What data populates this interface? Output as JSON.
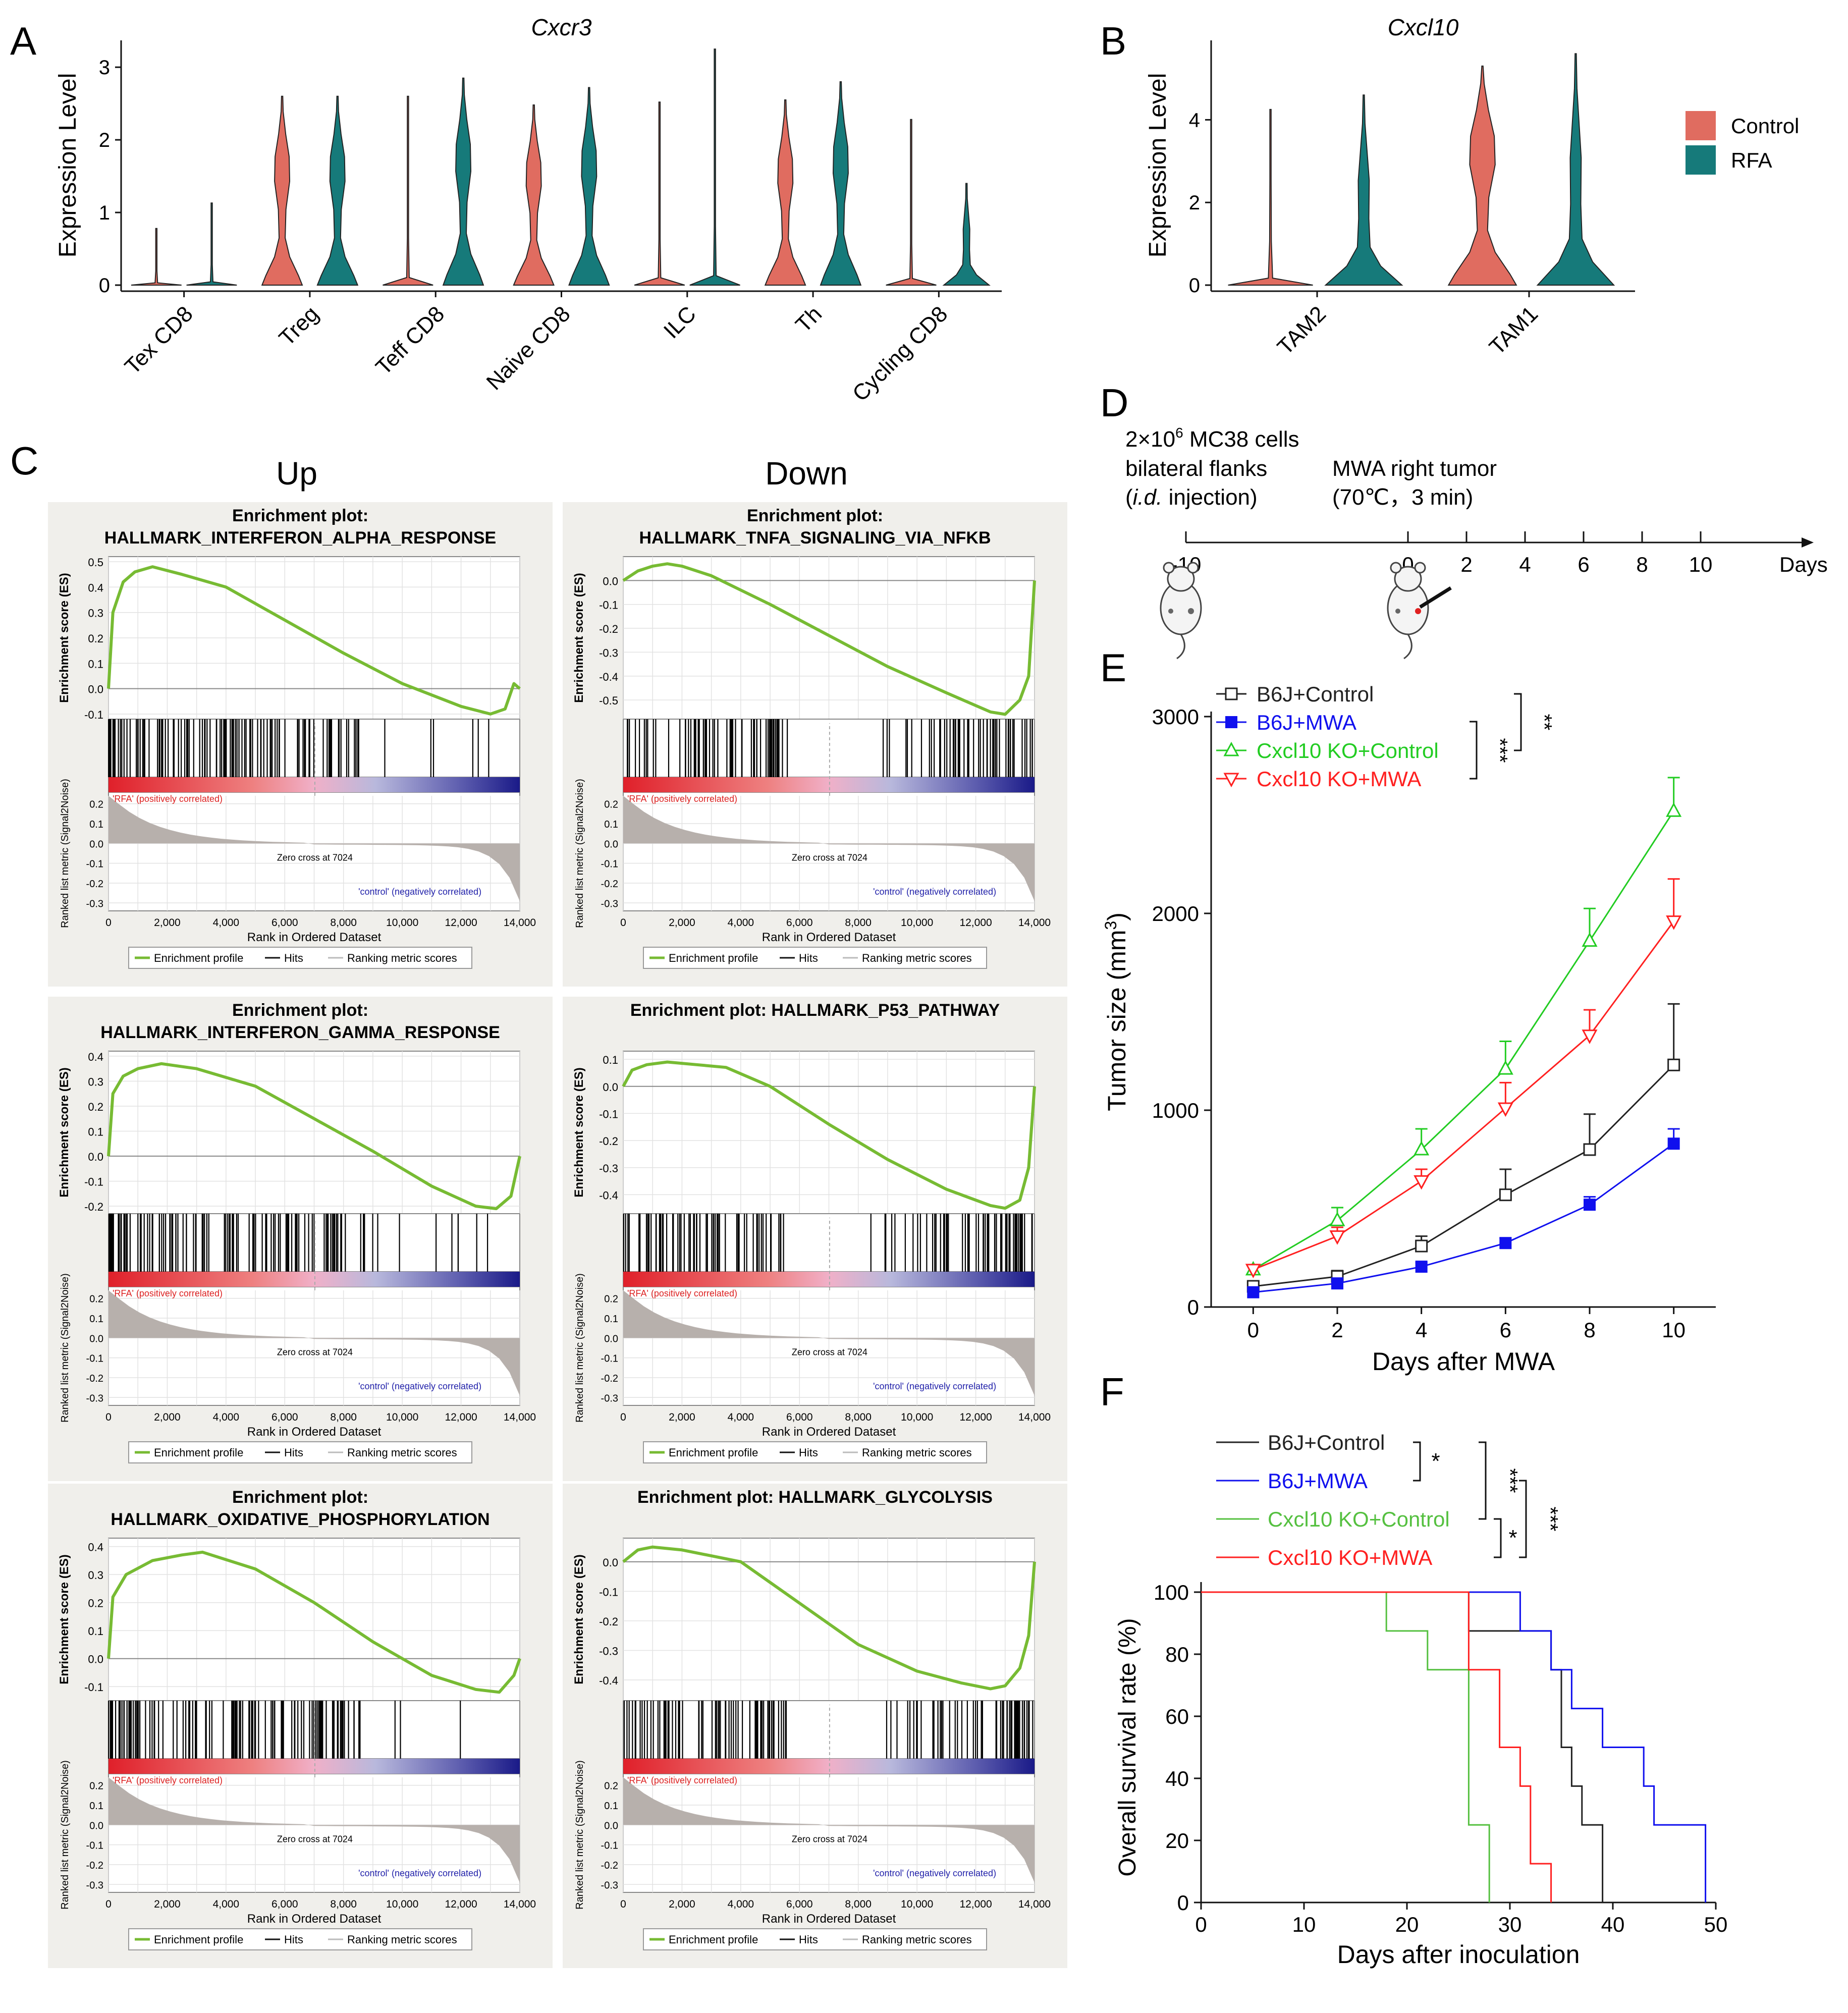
{
  "colors": {
    "control": "#e06c60",
    "rfa": "#167a7a",
    "gsea_curve": "#77bb33",
    "gsea_panel": "#f0efeb",
    "green": "#22cc22",
    "red": "#ff2020",
    "blue": "#1010ee",
    "black": "#222222",
    "survival_green": "#55c040"
  },
  "panel_letters": {
    "a": "A",
    "b": "B",
    "c": "C",
    "d": "D",
    "e": "E",
    "f": "F"
  },
  "chart_data": [
    {
      "id": "A",
      "type": "violin",
      "title": "Cxcr3",
      "ylabel": "Expression Level",
      "ylim": [
        0,
        3.3
      ],
      "yticks": [
        "0",
        "1",
        "2",
        "3"
      ],
      "categories": [
        "Tex CD8",
        "Treg",
        "Teff CD8",
        "Naive CD8",
        "ILC",
        "Th",
        "Cycling CD8"
      ],
      "max": {
        "Control": [
          0.78,
          2.6,
          2.6,
          2.48,
          2.52,
          2.55,
          2.28
        ],
        "RFA": [
          1.13,
          2.6,
          2.85,
          2.72,
          3.25,
          2.8,
          1.4
        ]
      },
      "shape_index": {
        "Control": [
          0,
          2,
          0,
          2,
          0,
          2,
          0
        ],
        "RFA": [
          0,
          2,
          2,
          2,
          0,
          2,
          1
        ]
      }
    },
    {
      "id": "B",
      "type": "violin",
      "title": "Cxcl10",
      "ylabel": "Expression Level",
      "ylim": [
        0,
        5.8
      ],
      "yticks": [
        "0",
        "2",
        "4"
      ],
      "categories": [
        "TAM2",
        "TAM1"
      ],
      "max": {
        "Control": [
          4.25,
          5.3
        ],
        "RFA": [
          4.6,
          5.6
        ]
      },
      "shape_index": {
        "Control": [
          0,
          2
        ],
        "RFA": [
          1,
          1
        ]
      },
      "legend": [
        "Control",
        "RFA"
      ]
    },
    {
      "id": "C",
      "type": "gsea",
      "column_titles": [
        "Up",
        "Down"
      ],
      "common": {
        "es_label": "Enrichment score (ES)",
        "rank_label": "Ranked list metric (Signal2Noise)",
        "xlabel": "Rank in Ordered Dataset",
        "xticks": [
          "0",
          "2,000",
          "4,000",
          "6,000",
          "8,000",
          "10,000",
          "12,000",
          "14,000"
        ],
        "rank_ticks": [
          "0.2",
          "0.1",
          "0.0",
          "-0.1",
          "-0.2",
          "-0.3"
        ],
        "pos_label": "'RFA' (positively correlated)",
        "neg_label": "'control' (negatively correlated)",
        "zero_cross": "Zero cross at 7024",
        "legend": [
          "Enrichment profile",
          "Hits",
          "Ranking metric scores"
        ]
      },
      "plots": [
        {
          "title1": "Enrichment plot:",
          "title2": "HALLMARK_INTERFERON_ALPHA_RESPONSE",
          "yticks": [
            0.5,
            0.4,
            0.3,
            0.2,
            0.1,
            0.0,
            -0.1
          ],
          "ylim": [
            -0.12,
            0.52
          ],
          "curve": {
            "x": [
              0,
              150,
              500,
              900,
              1500,
              2500,
              4000,
              6000,
              8000,
              10000,
              12000,
              13000,
              13500,
              13800,
              14000
            ],
            "y": [
              0,
              0.3,
              0.42,
              0.46,
              0.48,
              0.45,
              0.4,
              0.27,
              0.14,
              0.02,
              -0.07,
              -0.1,
              -0.08,
              0.02,
              0.0
            ]
          }
        },
        {
          "title1": "Enrichment plot:",
          "title2": "HALLMARK_TNFA_SIGNALING_VIA_NFKB",
          "yticks": [
            0.0,
            -0.1,
            -0.2,
            -0.3,
            -0.4,
            -0.5
          ],
          "ylim": [
            -0.58,
            0.1
          ],
          "curve": {
            "x": [
              0,
              500,
              1000,
              1500,
              2000,
              3000,
              5000,
              7000,
              9000,
              11000,
              12500,
              13000,
              13500,
              13800,
              14000
            ],
            "y": [
              0,
              0.04,
              0.06,
              0.07,
              0.06,
              0.02,
              -0.1,
              -0.23,
              -0.36,
              -0.47,
              -0.55,
              -0.56,
              -0.5,
              -0.4,
              0.0
            ]
          }
        },
        {
          "title1": "Enrichment plot:",
          "title2": "HALLMARK_INTERFERON_GAMMA_RESPONSE",
          "yticks": [
            0.4,
            0.3,
            0.2,
            0.1,
            0.0,
            -0.1,
            -0.2
          ],
          "ylim": [
            -0.23,
            0.42
          ],
          "curve": {
            "x": [
              0,
              150,
              500,
              1000,
              1800,
              3000,
              5000,
              7000,
              9000,
              11000,
              12500,
              13200,
              13700,
              14000
            ],
            "y": [
              0,
              0.25,
              0.32,
              0.35,
              0.37,
              0.35,
              0.28,
              0.15,
              0.02,
              -0.12,
              -0.2,
              -0.21,
              -0.16,
              0.0
            ]
          }
        },
        {
          "title1": "Enrichment plot: HALLMARK_P53_PATHWAY",
          "title2": "",
          "yticks": [
            0.1,
            0.0,
            -0.1,
            -0.2,
            -0.3,
            -0.4
          ],
          "ylim": [
            -0.47,
            0.13
          ],
          "curve": {
            "x": [
              0,
              300,
              800,
              1500,
              2500,
              3500,
              5000,
              7000,
              9000,
              11000,
              12500,
              13000,
              13500,
              13800,
              14000
            ],
            "y": [
              0,
              0.06,
              0.08,
              0.09,
              0.08,
              0.07,
              0.0,
              -0.14,
              -0.27,
              -0.38,
              -0.44,
              -0.45,
              -0.42,
              -0.3,
              0.0
            ]
          }
        },
        {
          "title1": "Enrichment plot:",
          "title2": "HALLMARK_OXIDATIVE_PHOSPHORYLATION",
          "yticks": [
            0.4,
            0.3,
            0.2,
            0.1,
            0.0,
            -0.1
          ],
          "ylim": [
            -0.15,
            0.43
          ],
          "curve": {
            "x": [
              0,
              150,
              600,
              1500,
              2500,
              3200,
              5000,
              7000,
              9000,
              11000,
              12500,
              13300,
              13800,
              14000
            ],
            "y": [
              0,
              0.22,
              0.3,
              0.35,
              0.37,
              0.38,
              0.32,
              0.2,
              0.06,
              -0.06,
              -0.11,
              -0.12,
              -0.06,
              0.0
            ]
          }
        },
        {
          "title1": "Enrichment plot: HALLMARK_GLYCOLYSIS",
          "title2": "",
          "yticks": [
            0.0,
            -0.1,
            -0.2,
            -0.3,
            -0.4
          ],
          "ylim": [
            -0.47,
            0.08
          ],
          "curve": {
            "x": [
              0,
              500,
              1000,
              2000,
              3000,
              4000,
              6000,
              8000,
              10000,
              11500,
              12500,
              13000,
              13500,
              13800,
              14000
            ],
            "y": [
              0,
              0.04,
              0.05,
              0.04,
              0.02,
              0.0,
              -0.14,
              -0.28,
              -0.37,
              -0.41,
              -0.43,
              -0.42,
              -0.36,
              -0.25,
              0.0
            ]
          }
        }
      ]
    },
    {
      "id": "D",
      "type": "timeline",
      "text_cells": "2×10",
      "text_sup": "6",
      "text_cells_rest": " MC38 cells",
      "text_flanks": "bilateral flanks",
      "text_inj_open": "(",
      "text_inj_italic": "i.d.",
      "text_inj_rest": " injection)",
      "text_mwa": "MWA right tumor",
      "text_temp": "(70℃，3 min)",
      "ticks": [
        -10,
        0,
        2,
        4,
        6,
        8,
        10
      ],
      "tick_labels": [
        "-10",
        "0",
        "2",
        "4",
        "6",
        "8",
        "10"
      ],
      "axis_label": "Days"
    },
    {
      "id": "E",
      "type": "line",
      "xlabel": "Days after MWA",
      "ylabel_main": "Tumor size (mm",
      "ylabel_sup": "3",
      "ylabel_end": ")",
      "xlim": [
        -1,
        11
      ],
      "ylim": [
        0,
        3000
      ],
      "x": [
        0,
        2,
        4,
        6,
        8,
        10
      ],
      "xticks": [
        "0",
        "2",
        "4",
        "6",
        "8",
        "10"
      ],
      "yticks": [
        "0",
        "1000",
        "2000",
        "3000"
      ],
      "series": [
        {
          "name": "B6J+Control",
          "color": "#222222",
          "marker": "square-open",
          "values": [
            105,
            155,
            310,
            570,
            800,
            1230
          ],
          "err": [
            25,
            30,
            50,
            130,
            180,
            310
          ]
        },
        {
          "name": "B6J+MWA",
          "color": "#1010ee",
          "marker": "square-filled",
          "values": [
            75,
            120,
            205,
            325,
            520,
            830
          ],
          "err": [
            15,
            15,
            20,
            25,
            40,
            75
          ]
        },
        {
          "name": "Cxcl10 KO+Control",
          "color": "#22cc22",
          "marker": "triangle-up-open",
          "values": [
            190,
            440,
            800,
            1210,
            1860,
            2520
          ],
          "err": [
            20,
            65,
            105,
            140,
            165,
            170
          ]
        },
        {
          "name": "Cxcl10 KO+MWA",
          "color": "#ff2020",
          "marker": "triangle-down-open",
          "values": [
            190,
            360,
            640,
            1010,
            1380,
            1960
          ],
          "err": [
            20,
            45,
            60,
            130,
            130,
            215
          ]
        }
      ],
      "significance": [
        "***",
        "**"
      ]
    },
    {
      "id": "F",
      "type": "step",
      "xlabel": "Days after inoculation",
      "ylabel": "Overall survival rate (%)",
      "xlim": [
        0,
        50
      ],
      "ylim": [
        0,
        100
      ],
      "xticks": [
        "0",
        "10",
        "20",
        "30",
        "40",
        "50"
      ],
      "yticks": [
        "0",
        "20",
        "40",
        "60",
        "80",
        "100"
      ],
      "series": [
        {
          "name": "B6J+Control",
          "color": "#222222",
          "steps": [
            [
              0,
              100
            ],
            [
              26,
              87.5
            ],
            [
              34,
              75
            ],
            [
              35,
              50
            ],
            [
              36,
              37.5
            ],
            [
              37,
              25
            ],
            [
              39,
              0
            ]
          ]
        },
        {
          "name": "B6J+MWA",
          "color": "#1010ee",
          "steps": [
            [
              0,
              100
            ],
            [
              31,
              87.5
            ],
            [
              34,
              75
            ],
            [
              36,
              62.5
            ],
            [
              39,
              50
            ],
            [
              43,
              37.5
            ],
            [
              44,
              25
            ],
            [
              49,
              0
            ]
          ]
        },
        {
          "name": "Cxcl10 KO+Control",
          "color": "#55c040",
          "steps": [
            [
              0,
              100
            ],
            [
              18,
              87.5
            ],
            [
              22,
              75
            ],
            [
              26,
              25
            ],
            [
              28,
              0
            ]
          ]
        },
        {
          "name": "Cxcl10 KO+MWA",
          "color": "#ff2020",
          "steps": [
            [
              0,
              100
            ],
            [
              26,
              75
            ],
            [
              29,
              50
            ],
            [
              31,
              37.5
            ],
            [
              32,
              12.5
            ],
            [
              34,
              0
            ]
          ]
        }
      ],
      "significance": [
        "*",
        "***",
        "*",
        "***"
      ]
    }
  ]
}
